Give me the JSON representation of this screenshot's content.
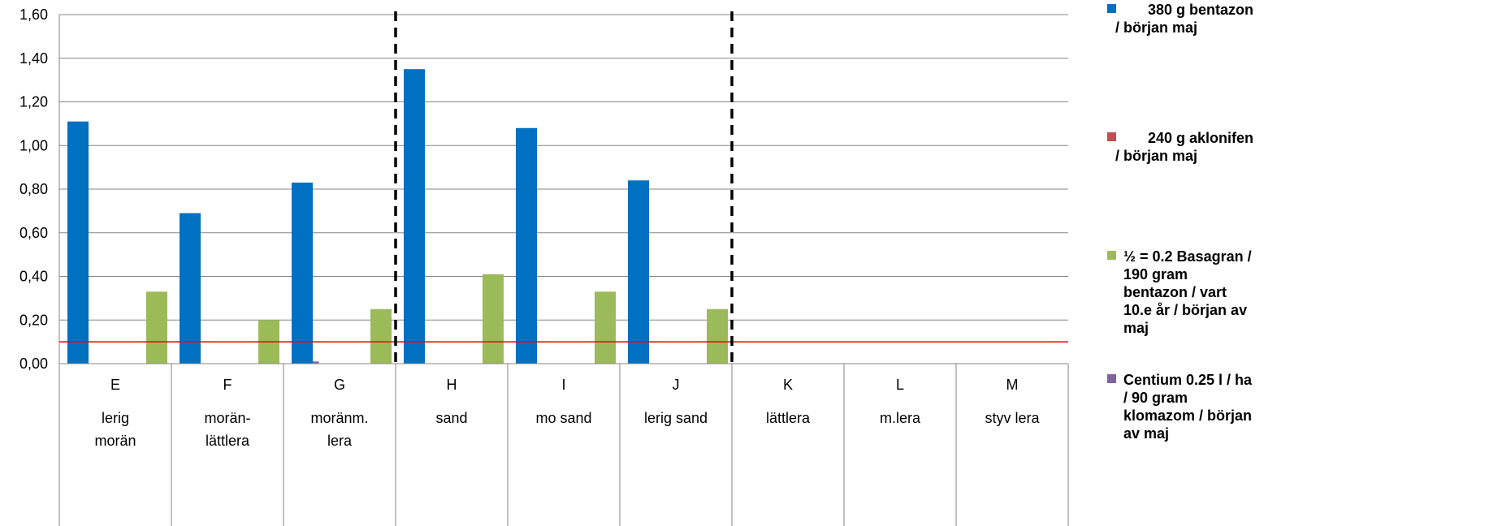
{
  "chart_data": {
    "type": "bar",
    "ylim": [
      0,
      1.6
    ],
    "yticks": [
      "0,00",
      "0,20",
      "0,40",
      "0,60",
      "0,80",
      "1,00",
      "1,20",
      "1,40",
      "1,60"
    ],
    "ytick_values": [
      0,
      0.2,
      0.4,
      0.6,
      0.8,
      1.0,
      1.2,
      1.4,
      1.6
    ],
    "grid": true,
    "legend_position": "right",
    "categories": [
      "E",
      "F",
      "G",
      "H",
      "I",
      "J",
      "K",
      "L",
      "M"
    ],
    "soil_types": [
      [
        "lerig",
        "morän"
      ],
      [
        "morän-",
        "lättlera"
      ],
      [
        "moränm.",
        "lera"
      ],
      [
        "sand"
      ],
      [
        "mo sand"
      ],
      [
        "lerig sand"
      ],
      [
        "lättlera"
      ],
      [
        "m.lera"
      ],
      [
        "styv lera"
      ]
    ],
    "series": [
      {
        "name": "380 g bentazon / början maj",
        "legend_lines": [
          "380 g bentazon",
          "/ början maj"
        ],
        "color": "#0070C0",
        "values": [
          1.11,
          0.69,
          0.83,
          1.35,
          1.08,
          0.84,
          0,
          0,
          0
        ]
      },
      {
        "name": "240 g aklonifen / början maj",
        "legend_lines": [
          "240 g aklonifen",
          "/ början maj"
        ],
        "color": "#C0504D",
        "values": [
          0,
          0,
          0,
          0,
          0,
          0,
          0,
          0,
          0
        ]
      },
      {
        "name": "½ = 0.2 Basagran / 190 gram bentazon / vart 10.e år / början av maj",
        "legend_lines": [
          "½ = 0.2 Basagran /",
          "190 gram",
          "bentazon / vart",
          "10.e år / början av",
          "maj"
        ],
        "color": "#9BBB59",
        "values": [
          0.33,
          0.2,
          0.25,
          0.41,
          0.33,
          0.25,
          0,
          0,
          0
        ]
      },
      {
        "name": "Centium 0.25 l / ha / 90 gram klomazom / början av maj",
        "legend_lines": [
          "Centium 0.25 l / ha",
          "/  90 gram",
          "klomazom / början",
          "av maj"
        ],
        "color": "#8064A2",
        "values": [
          0,
          0.01,
          0,
          0,
          0,
          0,
          0,
          0,
          0
        ]
      }
    ],
    "reference_line": {
      "value": 0.1,
      "color": "#FF0000"
    },
    "group_dividers_after": [
      "G",
      "J"
    ]
  }
}
